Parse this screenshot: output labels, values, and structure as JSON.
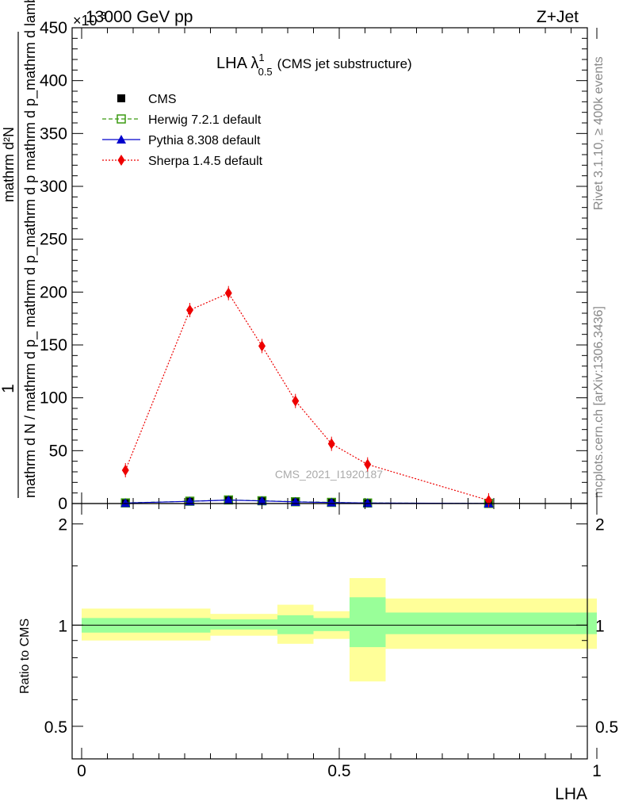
{
  "header": {
    "left": "13000 GeV pp",
    "right": "Z+Jet",
    "exponent": "×10",
    "exponent_power": "-3"
  },
  "title": {
    "main": "LHA λ",
    "sup": "1",
    "sub": "0.5",
    "note": "(CMS jet substructure)"
  },
  "side_text": {
    "rivet": "Rivet 3.1.10, ≥ 400k events",
    "mcplots": "mcplots.cern.ch [arXiv:1306.3436]"
  },
  "watermark": "CMS_2021_I1920187",
  "ylabel_top": {
    "numerator": "1",
    "denominator": "mathrm d N / mathrm d p_ mathrm d p_mathrm d p",
    "rhs_numerator": "mathrm d²N",
    "rhs_denominator": "mathrm d p_mathrm d lambda"
  },
  "ylabel_bottom": "Ratio to CMS",
  "xlabel": "LHA",
  "chart_data": [
    {
      "type": "line",
      "panel": "main",
      "xlim": [
        0,
        1
      ],
      "ylim": [
        0,
        450
      ],
      "y_multiplier": "1e-3",
      "yticks": [
        0,
        50,
        100,
        150,
        200,
        250,
        300,
        350,
        400,
        450
      ],
      "legend_position": "top-left",
      "series": [
        {
          "name": "CMS",
          "style": "square-filled",
          "color": "#000000",
          "x": [
            0.085,
            0.21,
            0.285,
            0.35,
            0.415,
            0.485,
            0.555,
            0.79
          ],
          "y": [
            0.5,
            2.0,
            3.2,
            2.5,
            1.6,
            1.0,
            0.5,
            0.1
          ]
        },
        {
          "name": "Herwig 7.2.1 default",
          "style": "square-open-dashed",
          "color": "#3a9a10",
          "x": [
            0.085,
            0.21,
            0.285,
            0.35,
            0.415,
            0.485,
            0.555,
            0.79
          ],
          "y": [
            0.6,
            2.2,
            3.4,
            2.6,
            1.7,
            1.1,
            0.5,
            0.1
          ]
        },
        {
          "name": "Pythia 8.308 default",
          "style": "triangle-solid",
          "color": "#0000cc",
          "x": [
            0.085,
            0.21,
            0.285,
            0.35,
            0.415,
            0.485,
            0.555,
            0.79
          ],
          "y": [
            0.5,
            2.1,
            3.3,
            2.5,
            1.6,
            1.0,
            0.5,
            0.1
          ]
        },
        {
          "name": "Sherpa 1.4.5 default",
          "style": "diamond-dotted",
          "color": "#ee0000",
          "x": [
            0.085,
            0.21,
            0.285,
            0.35,
            0.415,
            0.485,
            0.555,
            0.79
          ],
          "y": [
            31.5,
            183,
            199,
            149,
            97,
            56.5,
            37,
            3
          ]
        }
      ]
    },
    {
      "type": "area",
      "panel": "ratio",
      "title": "",
      "xlabel": "LHA",
      "ylabel": "Ratio to CMS",
      "xlim": [
        0,
        1
      ],
      "ylim": [
        0.4,
        2.3
      ],
      "y_scale": "log",
      "yticks": [
        0.5,
        1,
        2
      ],
      "xticks": [
        0,
        0.5,
        1
      ],
      "reference_line": 1,
      "band_colors": {
        "stat": "#99ff99",
        "total": "#ffff99"
      },
      "bins": [
        {
          "lo": 0.0,
          "hi": 0.17,
          "stat": [
            0.95,
            1.05
          ],
          "total": [
            0.9,
            1.12
          ]
        },
        {
          "lo": 0.17,
          "hi": 0.25,
          "stat": [
            0.95,
            1.05
          ],
          "total": [
            0.9,
            1.12
          ]
        },
        {
          "lo": 0.25,
          "hi": 0.32,
          "stat": [
            0.97,
            1.04
          ],
          "total": [
            0.93,
            1.08
          ]
        },
        {
          "lo": 0.32,
          "hi": 0.38,
          "stat": [
            0.97,
            1.04
          ],
          "total": [
            0.93,
            1.08
          ]
        },
        {
          "lo": 0.38,
          "hi": 0.45,
          "stat": [
            0.94,
            1.07
          ],
          "total": [
            0.88,
            1.15
          ]
        },
        {
          "lo": 0.45,
          "hi": 0.52,
          "stat": [
            0.96,
            1.05
          ],
          "total": [
            0.91,
            1.1
          ]
        },
        {
          "lo": 0.52,
          "hi": 0.59,
          "stat": [
            0.86,
            1.21
          ],
          "total": [
            0.68,
            1.38
          ]
        },
        {
          "lo": 0.59,
          "hi": 1.0,
          "stat": [
            0.94,
            1.09
          ],
          "total": [
            0.85,
            1.2
          ]
        }
      ]
    }
  ]
}
